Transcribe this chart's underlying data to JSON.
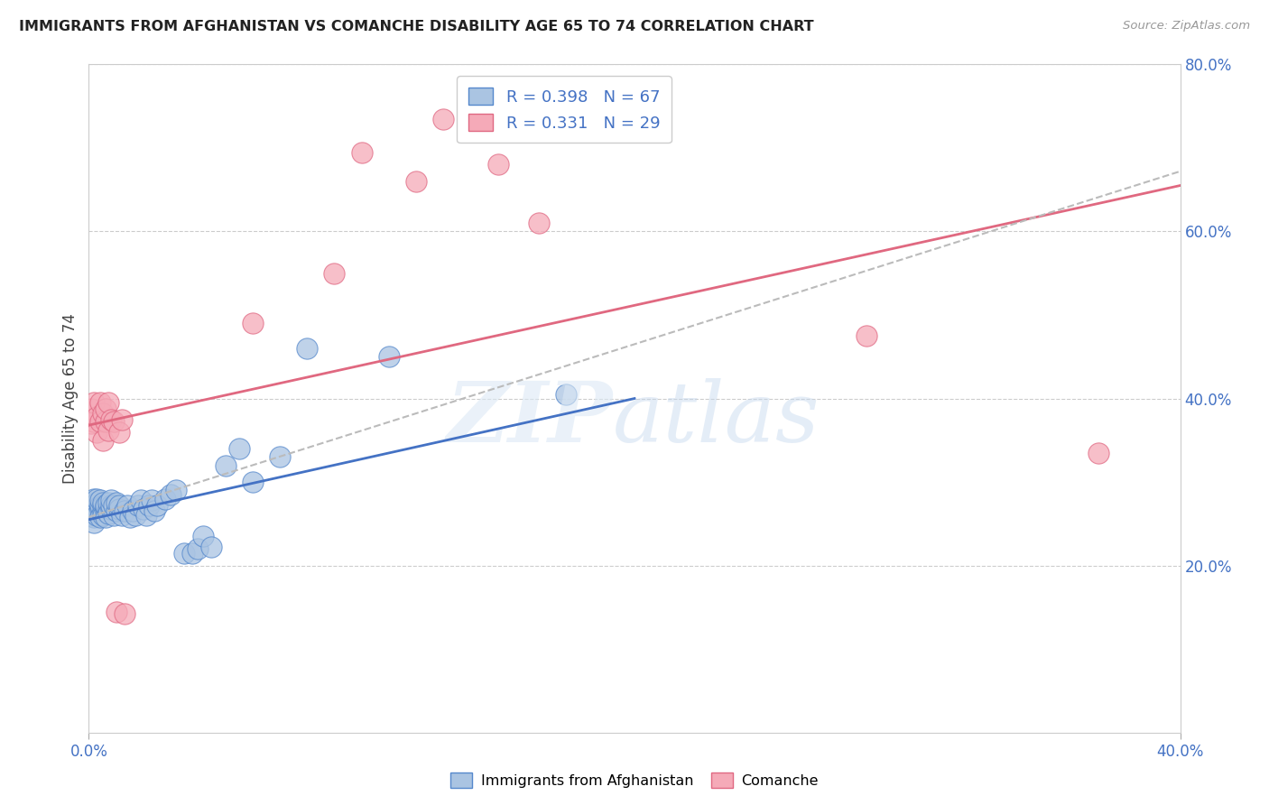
{
  "title": "IMMIGRANTS FROM AFGHANISTAN VS COMANCHE DISABILITY AGE 65 TO 74 CORRELATION CHART",
  "source": "Source: ZipAtlas.com",
  "ylabel": "Disability Age 65 to 74",
  "xlim": [
    0.0,
    0.4
  ],
  "ylim": [
    0.0,
    0.8
  ],
  "xtick_positions": [
    0.0,
    0.4
  ],
  "xtick_labels": [
    "0.0%",
    "40.0%"
  ],
  "ytick_right_positions": [
    0.2,
    0.4,
    0.6,
    0.8
  ],
  "ytick_right_labels": [
    "20.0%",
    "40.0%",
    "60.0%",
    "80.0%"
  ],
  "grid_yticks": [
    0.2,
    0.4,
    0.6,
    0.8
  ],
  "legend1_label": "R = 0.398   N = 67",
  "legend2_label": "R = 0.331   N = 29",
  "color_blue_face": "#aac4e2",
  "color_blue_edge": "#5588cc",
  "color_pink_face": "#f5aab8",
  "color_pink_edge": "#e06882",
  "line_blue": "#4472c4",
  "line_pink": "#e06880",
  "line_gray": "#bbbbbb",
  "title_color": "#222222",
  "axis_label_color": "#4472c4",
  "blue_line_x": [
    0.0,
    0.2
  ],
  "blue_line_y": [
    0.255,
    0.4
  ],
  "pink_line_x": [
    0.0,
    0.4
  ],
  "pink_line_y": [
    0.368,
    0.655
  ],
  "gray_line_x": [
    0.0,
    0.4
  ],
  "gray_line_y": [
    0.258,
    0.672
  ],
  "blue_pts_x": [
    0.001,
    0.001,
    0.001,
    0.001,
    0.002,
    0.002,
    0.002,
    0.002,
    0.002,
    0.003,
    0.003,
    0.003,
    0.003,
    0.003,
    0.004,
    0.004,
    0.004,
    0.004,
    0.005,
    0.005,
    0.005,
    0.005,
    0.006,
    0.006,
    0.006,
    0.006,
    0.007,
    0.007,
    0.007,
    0.008,
    0.008,
    0.008,
    0.009,
    0.009,
    0.01,
    0.01,
    0.011,
    0.011,
    0.012,
    0.013,
    0.014,
    0.015,
    0.016,
    0.017,
    0.018,
    0.019,
    0.02,
    0.021,
    0.022,
    0.023,
    0.024,
    0.025,
    0.028,
    0.03,
    0.032,
    0.035,
    0.038,
    0.04,
    0.042,
    0.045,
    0.05,
    0.055,
    0.06,
    0.07,
    0.08,
    0.11,
    0.175
  ],
  "blue_pts_y": [
    0.265,
    0.27,
    0.26,
    0.275,
    0.268,
    0.272,
    0.258,
    0.28,
    0.252,
    0.27,
    0.265,
    0.275,
    0.26,
    0.28,
    0.268,
    0.272,
    0.258,
    0.278,
    0.265,
    0.272,
    0.26,
    0.275,
    0.265,
    0.27,
    0.258,
    0.272,
    0.268,
    0.275,
    0.262,
    0.268,
    0.272,
    0.278,
    0.26,
    0.272,
    0.265,
    0.275,
    0.268,
    0.272,
    0.26,
    0.265,
    0.272,
    0.258,
    0.265,
    0.26,
    0.272,
    0.278,
    0.268,
    0.26,
    0.272,
    0.278,
    0.265,
    0.272,
    0.28,
    0.285,
    0.29,
    0.215,
    0.215,
    0.22,
    0.235,
    0.222,
    0.32,
    0.34,
    0.3,
    0.33,
    0.46,
    0.45,
    0.405
  ],
  "pink_pts_x": [
    0.001,
    0.001,
    0.002,
    0.002,
    0.003,
    0.003,
    0.004,
    0.004,
    0.005,
    0.005,
    0.006,
    0.006,
    0.007,
    0.007,
    0.008,
    0.009,
    0.01,
    0.011,
    0.012,
    0.013,
    0.06,
    0.09,
    0.1,
    0.12,
    0.13,
    0.15,
    0.165,
    0.285,
    0.37
  ],
  "pink_pts_y": [
    0.37,
    0.388,
    0.372,
    0.395,
    0.378,
    0.36,
    0.395,
    0.372,
    0.382,
    0.35,
    0.372,
    0.388,
    0.362,
    0.395,
    0.375,
    0.372,
    0.145,
    0.36,
    0.375,
    0.142,
    0.49,
    0.55,
    0.695,
    0.66,
    0.735,
    0.68,
    0.61,
    0.475,
    0.335
  ]
}
